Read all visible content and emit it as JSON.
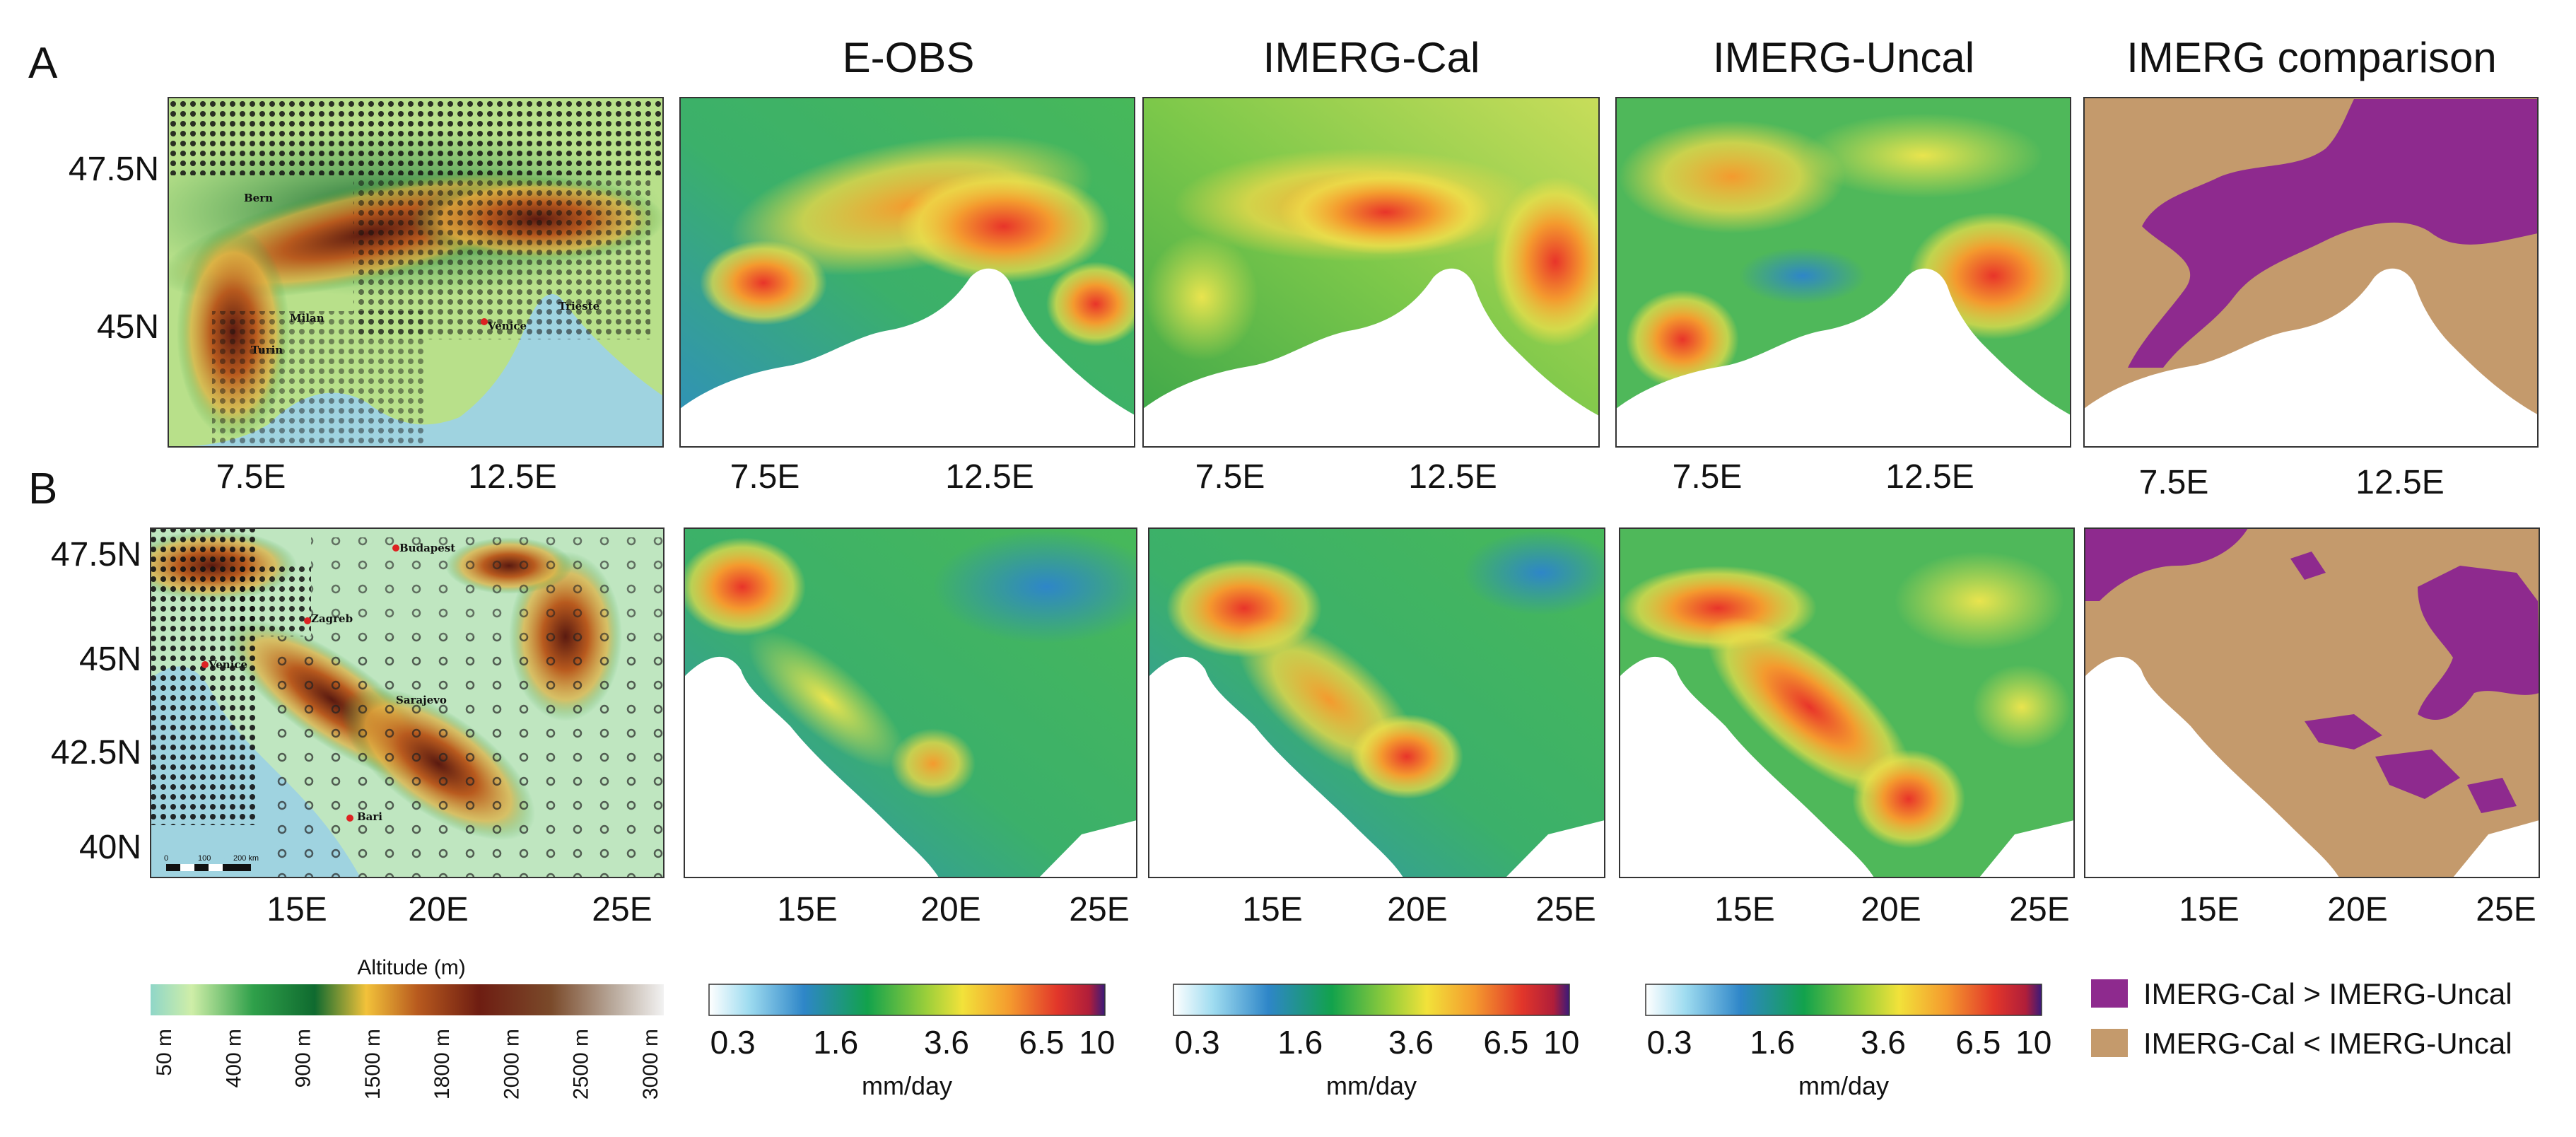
{
  "panel_labels": {
    "a": "A",
    "b": "B"
  },
  "column_titles": [
    "E-OBS",
    "IMERG-Cal",
    "IMERG-Uncal",
    "IMERG comparison"
  ],
  "row_a": {
    "lat_ticks": [
      "47.5N",
      "45N"
    ],
    "lon_ticks": [
      "7.5E",
      "12.5E"
    ],
    "cities": [
      "Bern",
      "Milan",
      "Turin",
      "Venice",
      "Trieste"
    ]
  },
  "row_b": {
    "lat_ticks": [
      "47.5N",
      "45N",
      "42.5N",
      "40N"
    ],
    "lon_ticks": [
      "15E",
      "20E",
      "25E"
    ],
    "cities": [
      "Budapest",
      "Zagreb",
      "Venice",
      "Sarajevo",
      "Bari"
    ],
    "scale_bar": [
      "0",
      "100",
      "200 km"
    ]
  },
  "altitude_legend": {
    "title": "Altitude (m)",
    "ticks": [
      "50 m",
      "400 m",
      "900 m",
      "1500 m",
      "1800 m",
      "2000 m",
      "2500 m",
      "3000 m"
    ]
  },
  "precip_legend": {
    "ticks": [
      "0.3",
      "1.6",
      "3.6",
      "6.5",
      "10"
    ],
    "unit": "mm/day"
  },
  "comparison_legend": {
    "items": [
      {
        "label": "IMERG-Cal > IMERG-Uncal",
        "color": "#8e2a8e"
      },
      {
        "label": "IMERG-Cal < IMERG-Uncal",
        "color": "#c49a6c"
      }
    ]
  },
  "colors": {
    "sea": "#9fd3e0",
    "comparison_brown": "#c49a6c",
    "comparison_purple": "#8e2a8e"
  }
}
